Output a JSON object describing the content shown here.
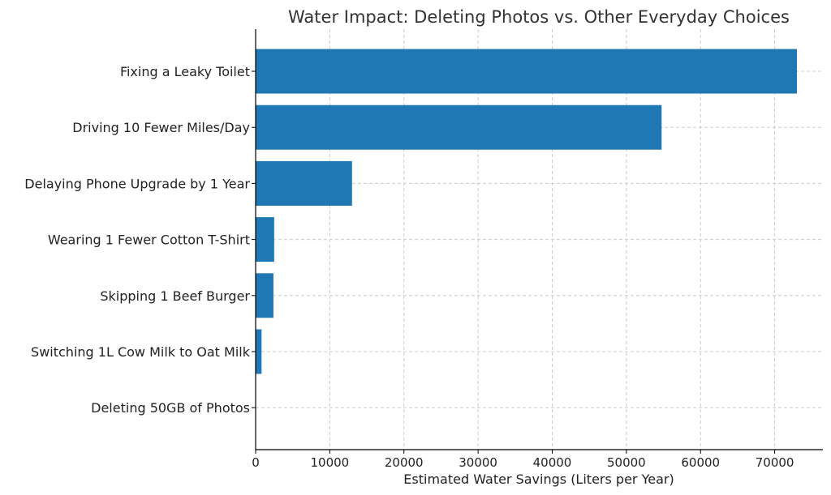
{
  "chart_data": {
    "type": "bar",
    "orientation": "horizontal",
    "title": "Water Impact: Deleting Photos vs. Other Everyday Choices",
    "xlabel": "Estimated Water Savings (Liters per Year)",
    "ylabel": "",
    "categories": [
      "Fixing a Leaky Toilet",
      "Driving 10 Fewer Miles/Day",
      "Delaying Phone Upgrade by 1 Year",
      "Wearing 1 Fewer Cotton T-Shirt",
      "Skipping 1 Beef Burger",
      "Switching 1L Cow Milk to Oat Milk",
      "Deleting 50GB of Photos"
    ],
    "values": [
      73000,
      54750,
      13000,
      2500,
      2400,
      800,
      0
    ],
    "xlim": [
      0,
      76500
    ],
    "xticks": [
      0,
      10000,
      20000,
      30000,
      40000,
      50000,
      60000,
      70000
    ],
    "xtick_labels": [
      "0",
      "10000",
      "20000",
      "30000",
      "40000",
      "50000",
      "60000",
      "70000"
    ],
    "grid": true,
    "bar_color": "#1f77b4"
  }
}
